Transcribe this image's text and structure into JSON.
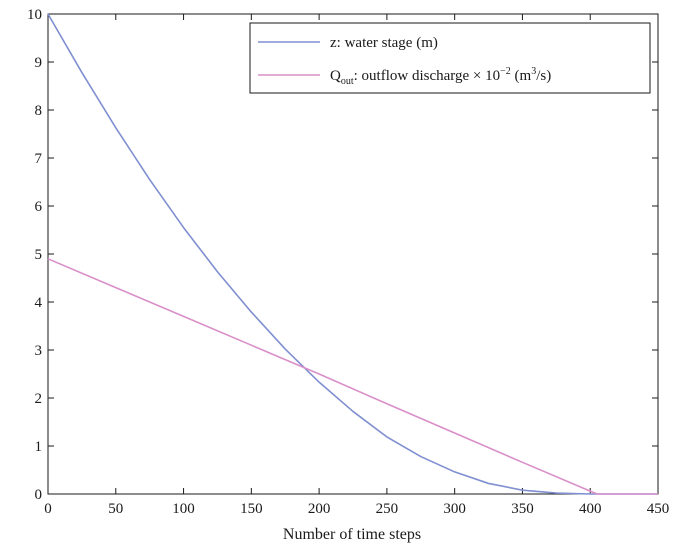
{
  "chart_data": {
    "type": "line",
    "title": "",
    "xlabel": "Number of time steps",
    "ylabel": "",
    "xlim": [
      0,
      450
    ],
    "ylim": [
      0,
      10
    ],
    "xticks": [
      0,
      50,
      100,
      150,
      200,
      250,
      300,
      350,
      400,
      450
    ],
    "yticks": [
      0,
      1,
      2,
      3,
      4,
      5,
      6,
      7,
      8,
      9,
      10
    ],
    "grid": false,
    "legend_position": "top-right",
    "series": [
      {
        "name": "z: water stage (m)",
        "legend": {
          "main": "z: water stage (m)"
        },
        "color": "#7f8fd0",
        "x": [
          0,
          25,
          50,
          75,
          100,
          125,
          150,
          175,
          200,
          225,
          250,
          275,
          300,
          325,
          350,
          375,
          400,
          425,
          450
        ],
        "y": [
          10.0,
          8.78,
          7.63,
          6.55,
          5.55,
          4.63,
          3.79,
          3.02,
          2.33,
          1.72,
          1.19,
          0.78,
          0.46,
          0.22,
          0.08,
          0.02,
          0.0,
          0.0,
          0.0
        ]
      },
      {
        "name": "Qout: outflow discharge × 10−2 (m³/s)",
        "legend": {
          "q": "Q",
          "sub": "out",
          "main": ": outflow discharge × 10",
          "sup1": "−2",
          "mid": " (m",
          "sup2": "3",
          "end": "/s)"
        },
        "color": "#d98fc9",
        "x": [
          0,
          50,
          100,
          150,
          200,
          250,
          300,
          350,
          405,
          450
        ],
        "y": [
          4.9,
          4.3,
          3.7,
          3.1,
          2.5,
          1.88,
          1.27,
          0.66,
          0.0,
          0.0
        ]
      }
    ]
  }
}
